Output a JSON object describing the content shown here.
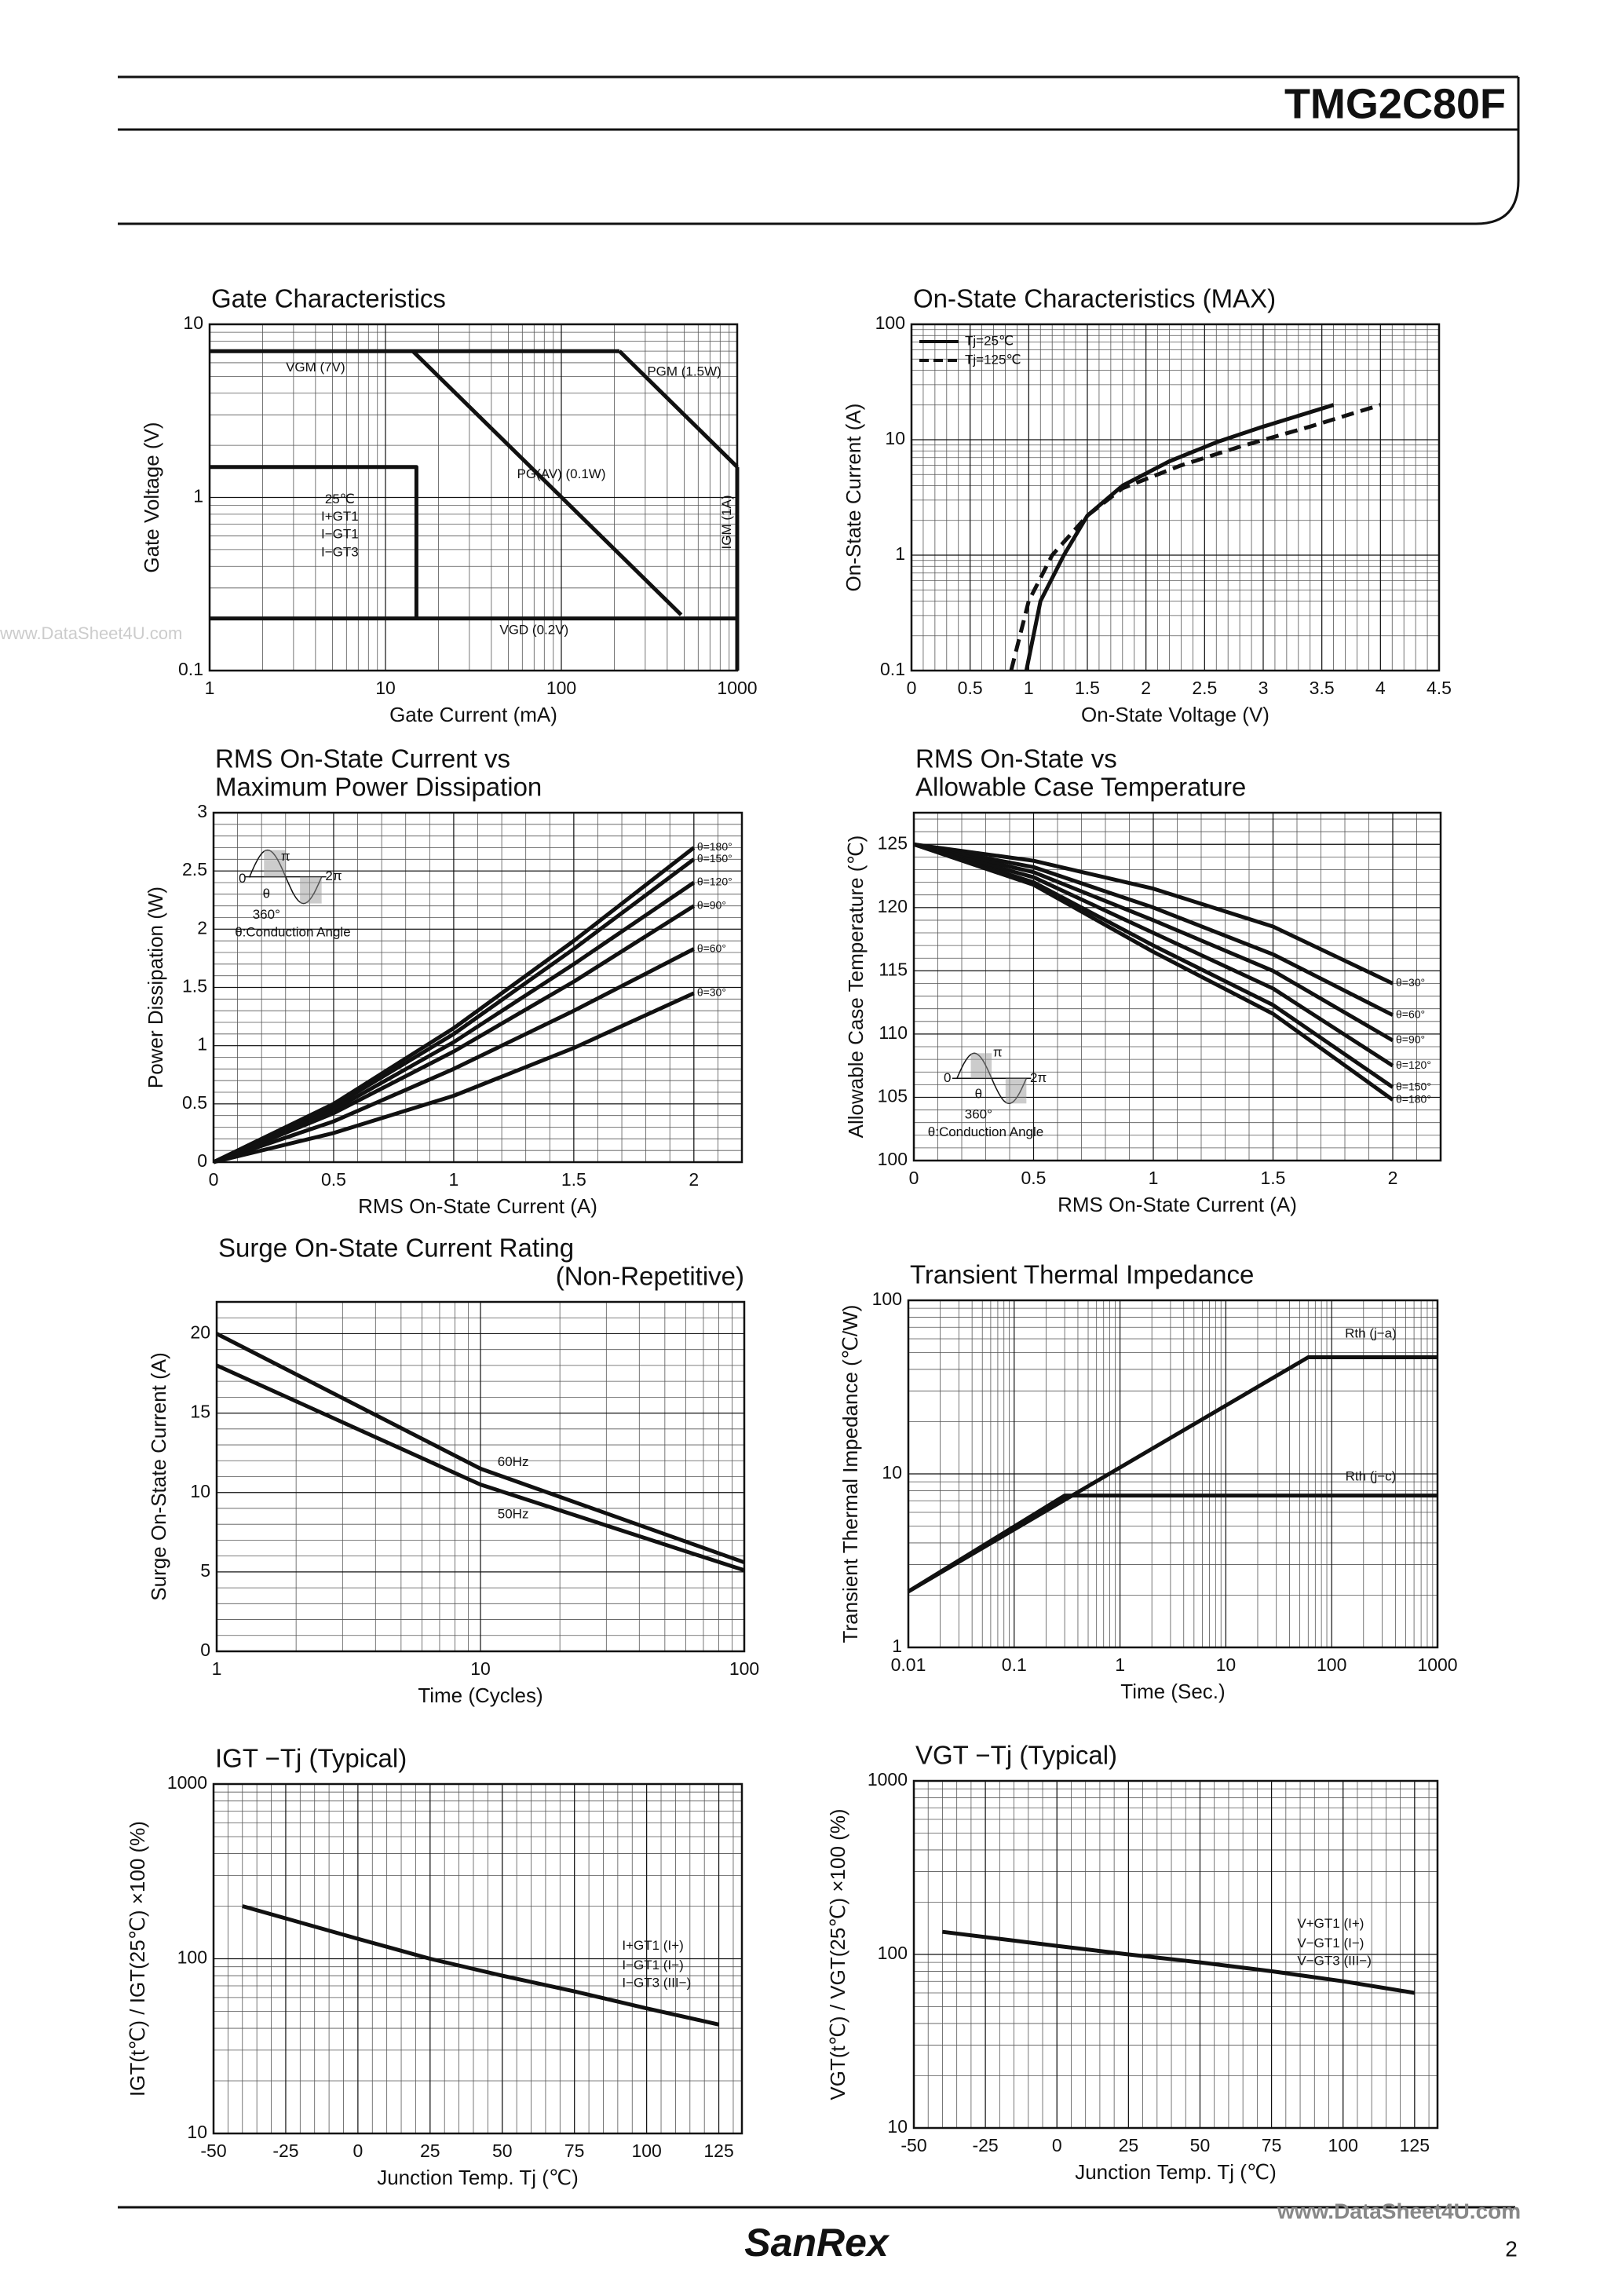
{
  "header": {
    "title": "TMG2C80F"
  },
  "footer": {
    "brand": "SanRex",
    "page": "2",
    "watermark": "www.DataSheet4U.com",
    "watermark2": "www.DataSheet4U.com"
  },
  "chart_data": [
    {
      "type": "line",
      "title": [
        "Gate Characteristics"
      ],
      "xlabel": "Gate Current (mA)",
      "ylabel": "Gate Voltage (V)",
      "xscale": "log",
      "yscale": "log",
      "xlim": [
        1,
        1000
      ],
      "ylim": [
        0.1,
        10
      ],
      "xticks": [
        1,
        10,
        100,
        1000
      ],
      "yticks": [
        0.1,
        1,
        10
      ],
      "grid": true,
      "series": [
        {
          "color": "#111111",
          "x": [
            1,
            214
          ],
          "values": [
            7,
            7
          ]
        },
        {
          "color": "#111111",
          "x": [
            214,
            300,
            500,
            1000
          ],
          "values": [
            7,
            5,
            3,
            1.5
          ]
        },
        {
          "color": "#111111",
          "x": [
            14.3,
            480
          ],
          "values": [
            7,
            0.21
          ]
        },
        {
          "color": "#111111",
          "x": [
            1,
            15,
            15
          ],
          "values": [
            1.5,
            1.5,
            0.2
          ]
        },
        {
          "color": "#111111",
          "x": [
            1,
            1000
          ],
          "values": [
            0.2,
            0.2
          ]
        },
        {
          "color": "#111111",
          "x": [
            1000,
            1000
          ],
          "values": [
            1.5,
            0.1
          ]
        }
      ],
      "annotations": [
        "VGM (7V)",
        "PGM (1.5W)",
        "PG(AV) (0.1W)",
        "25℃",
        "I+GT1",
        "I−GT1",
        "I−GT3",
        "IGM (1A)",
        "VGD (0.2V)"
      ]
    },
    {
      "type": "line",
      "title": [
        "On-State Characteristics (MAX)"
      ],
      "xlabel": "On-State Voltage (V)",
      "ylabel": "On-State Current (A)",
      "xscale": "linear",
      "yscale": "log",
      "xlim": [
        0,
        4.5
      ],
      "ylim": [
        0.1,
        100
      ],
      "xticks": [
        0,
        0.5,
        1,
        1.5,
        2,
        2.5,
        3,
        3.5,
        4,
        4.5
      ],
      "yticks": [
        0.1,
        1,
        10,
        100
      ],
      "grid": true,
      "legend": "upper left",
      "series": [
        {
          "name": "Tj=25℃",
          "color": "#111111",
          "style": "solid",
          "x": [
            0.98,
            1.1,
            1.3,
            1.5,
            1.8,
            2.2,
            2.6,
            3.0,
            3.6
          ],
          "values": [
            0.1,
            0.4,
            1,
            2.2,
            4,
            6.5,
            9.5,
            13,
            20
          ]
        },
        {
          "name": "Tj=125℃",
          "color": "#111111",
          "style": "dashed",
          "x": [
            0.85,
            1.0,
            1.2,
            1.5,
            1.8,
            2.3,
            2.8,
            3.4,
            4.0
          ],
          "values": [
            0.1,
            0.4,
            1,
            2.2,
            3.8,
            6,
            8.7,
            13,
            20
          ]
        }
      ]
    },
    {
      "type": "line",
      "title": [
        "RMS On-State Current vs",
        "Maximum Power Dissipation"
      ],
      "xlabel": "RMS On-State Current (A)",
      "ylabel": "Power Dissipation (W)",
      "xscale": "linear",
      "yscale": "linear",
      "xlim": [
        0,
        2.2
      ],
      "ylim": [
        0,
        3
      ],
      "xticks": [
        0,
        0.5,
        1,
        1.5,
        2
      ],
      "yticks": [
        0,
        0.5,
        1,
        1.5,
        2,
        2.5,
        3
      ],
      "grid": true,
      "series": [
        {
          "name": "θ=180°",
          "color": "#111111",
          "x": [
            0,
            0.5,
            1,
            1.5,
            2
          ],
          "values": [
            0,
            0.5,
            1.15,
            1.9,
            2.7
          ]
        },
        {
          "name": "θ=150°",
          "color": "#111111",
          "x": [
            0,
            0.5,
            1,
            1.5,
            2
          ],
          "values": [
            0,
            0.48,
            1.1,
            1.83,
            2.6
          ]
        },
        {
          "name": "θ=120°",
          "color": "#111111",
          "x": [
            0,
            0.5,
            1,
            1.5,
            2
          ],
          "values": [
            0,
            0.45,
            1.03,
            1.7,
            2.4
          ]
        },
        {
          "name": "θ=90°",
          "color": "#111111",
          "x": [
            0,
            0.5,
            1,
            1.5,
            2
          ],
          "values": [
            0,
            0.42,
            0.95,
            1.55,
            2.2
          ]
        },
        {
          "name": "θ=60°",
          "color": "#111111",
          "x": [
            0,
            0.5,
            1,
            1.5,
            2
          ],
          "values": [
            0,
            0.35,
            0.8,
            1.3,
            1.83
          ]
        },
        {
          "name": "θ=30°",
          "color": "#111111",
          "x": [
            0,
            0.5,
            1,
            1.5,
            2
          ],
          "values": [
            0,
            0.25,
            0.57,
            0.98,
            1.45
          ]
        }
      ],
      "annotations": [
        "θ:Conduction Angle",
        "360°",
        "0",
        "π",
        "2π",
        "θ"
      ]
    },
    {
      "type": "line",
      "title": [
        "RMS On-State vs",
        "Allowable Case Temperature"
      ],
      "xlabel": "RMS On-State Current (A)",
      "ylabel": "Allowable Case Temperature (℃)",
      "xscale": "linear",
      "yscale": "linear",
      "xlim": [
        0,
        2.2
      ],
      "ylim": [
        100,
        127.5
      ],
      "xticks": [
        0,
        0.5,
        1,
        1.5,
        2
      ],
      "yticks": [
        100,
        105,
        110,
        115,
        120,
        125
      ],
      "grid": true,
      "series": [
        {
          "name": "θ=30°",
          "color": "#111111",
          "x": [
            0,
            0.5,
            1,
            1.5,
            2
          ],
          "values": [
            125,
            123.7,
            121.5,
            118.5,
            114
          ]
        },
        {
          "name": "θ=60°",
          "color": "#111111",
          "x": [
            0,
            0.5,
            1,
            1.5,
            2
          ],
          "values": [
            125,
            123.2,
            120,
            116.3,
            111.5
          ]
        },
        {
          "name": "θ=90°",
          "color": "#111111",
          "x": [
            0,
            0.5,
            1,
            1.5,
            2
          ],
          "values": [
            125,
            122.8,
            119,
            115,
            109.5
          ]
        },
        {
          "name": "θ=120°",
          "color": "#111111",
          "x": [
            0,
            0.5,
            1,
            1.5,
            2
          ],
          "values": [
            125,
            122.4,
            118,
            113.6,
            107.5
          ]
        },
        {
          "name": "θ=150°",
          "color": "#111111",
          "x": [
            0,
            0.5,
            1,
            1.5,
            2
          ],
          "values": [
            125,
            122,
            117,
            112.3,
            105.8
          ]
        },
        {
          "name": "θ=180°",
          "color": "#111111",
          "x": [
            0,
            0.5,
            1,
            1.5,
            2
          ],
          "values": [
            125,
            121.8,
            116.5,
            111.6,
            104.8
          ]
        }
      ],
      "annotations": [
        "θ:Conduction Angle",
        "360°",
        "0",
        "π",
        "2π",
        "θ"
      ]
    },
    {
      "type": "line",
      "title": [
        "Surge On-State Current Rating",
        "(Non-Repetitive)"
      ],
      "xlabel": "Time (Cycles)",
      "ylabel": "Surge On-State Current (A)",
      "xscale": "log",
      "yscale": "linear",
      "xlim": [
        1,
        100
      ],
      "ylim": [
        0,
        22
      ],
      "xticks": [
        1,
        10,
        100
      ],
      "yticks": [
        0,
        5,
        10,
        15,
        20
      ],
      "grid": true,
      "series": [
        {
          "name": "60Hz",
          "color": "#111111",
          "x": [
            1,
            10,
            100
          ],
          "values": [
            20,
            11.5,
            5.6
          ]
        },
        {
          "name": "50Hz",
          "color": "#111111",
          "x": [
            1,
            10,
            100
          ],
          "values": [
            18,
            10.5,
            5.1
          ]
        }
      ]
    },
    {
      "type": "line",
      "title": [
        "Transient Thermal Impedance"
      ],
      "xlabel": "Time (Sec.)",
      "ylabel": "Transient Thermal Impedance (℃/W)",
      "xscale": "log",
      "yscale": "log",
      "xlim": [
        0.01,
        1000
      ],
      "ylim": [
        1,
        100
      ],
      "xticks": [
        0.01,
        0.1,
        1,
        10,
        100,
        1000
      ],
      "yticks": [
        1,
        10,
        100
      ],
      "grid": true,
      "series": [
        {
          "name": "Rth (j−a)",
          "color": "#111111",
          "x": [
            0.01,
            60,
            1000
          ],
          "values": [
            2.1,
            47,
            47
          ]
        },
        {
          "name": "Rth (j−c)",
          "color": "#111111",
          "x": [
            0.01,
            0.3,
            1000
          ],
          "values": [
            2.1,
            7.5,
            7.5
          ]
        }
      ]
    },
    {
      "type": "line",
      "title": [
        "IGT −Tj (Typical)"
      ],
      "xlabel": "Junction Temp. Tj (℃)",
      "ylabel": "IGT(t℃) / IGT(25℃) ×100 (%)",
      "xscale": "linear",
      "yscale": "log",
      "xlim": [
        -50,
        133
      ],
      "ylim": [
        10,
        1000
      ],
      "xticks": [
        -50,
        -25,
        0,
        25,
        50,
        75,
        100,
        125
      ],
      "yticks": [
        10,
        100,
        1000
      ],
      "grid": true,
      "series": [
        {
          "color": "#111111",
          "x": [
            -40,
            0,
            25,
            50,
            75,
            100,
            125
          ],
          "values": [
            200,
            130,
            100,
            80,
            65,
            52,
            42
          ]
        }
      ],
      "curve_labels": [
        "I+GT1 (I+)",
        "I−GT1 (I−)",
        "I−GT3 (III−)"
      ]
    },
    {
      "type": "line",
      "title": [
        "VGT −Tj (Typical)"
      ],
      "xlabel": "Junction Temp. Tj (℃)",
      "ylabel": "VGT(t℃) / VGT(25℃) ×100 (%)",
      "xscale": "linear",
      "yscale": "log",
      "xlim": [
        -50,
        133
      ],
      "ylim": [
        10,
        1000
      ],
      "xticks": [
        -50,
        -25,
        0,
        25,
        50,
        75,
        100,
        125
      ],
      "yticks": [
        10,
        100,
        1000
      ],
      "grid": true,
      "series": [
        {
          "color": "#111111",
          "x": [
            -40,
            0,
            25,
            50,
            75,
            100,
            125
          ],
          "values": [
            135,
            112,
            100,
            90,
            80,
            70,
            60
          ]
        }
      ],
      "curve_labels": [
        "V+GT1 (I+)",
        "V−GT1 (I−)",
        "V−GT3 (III−)"
      ]
    }
  ]
}
